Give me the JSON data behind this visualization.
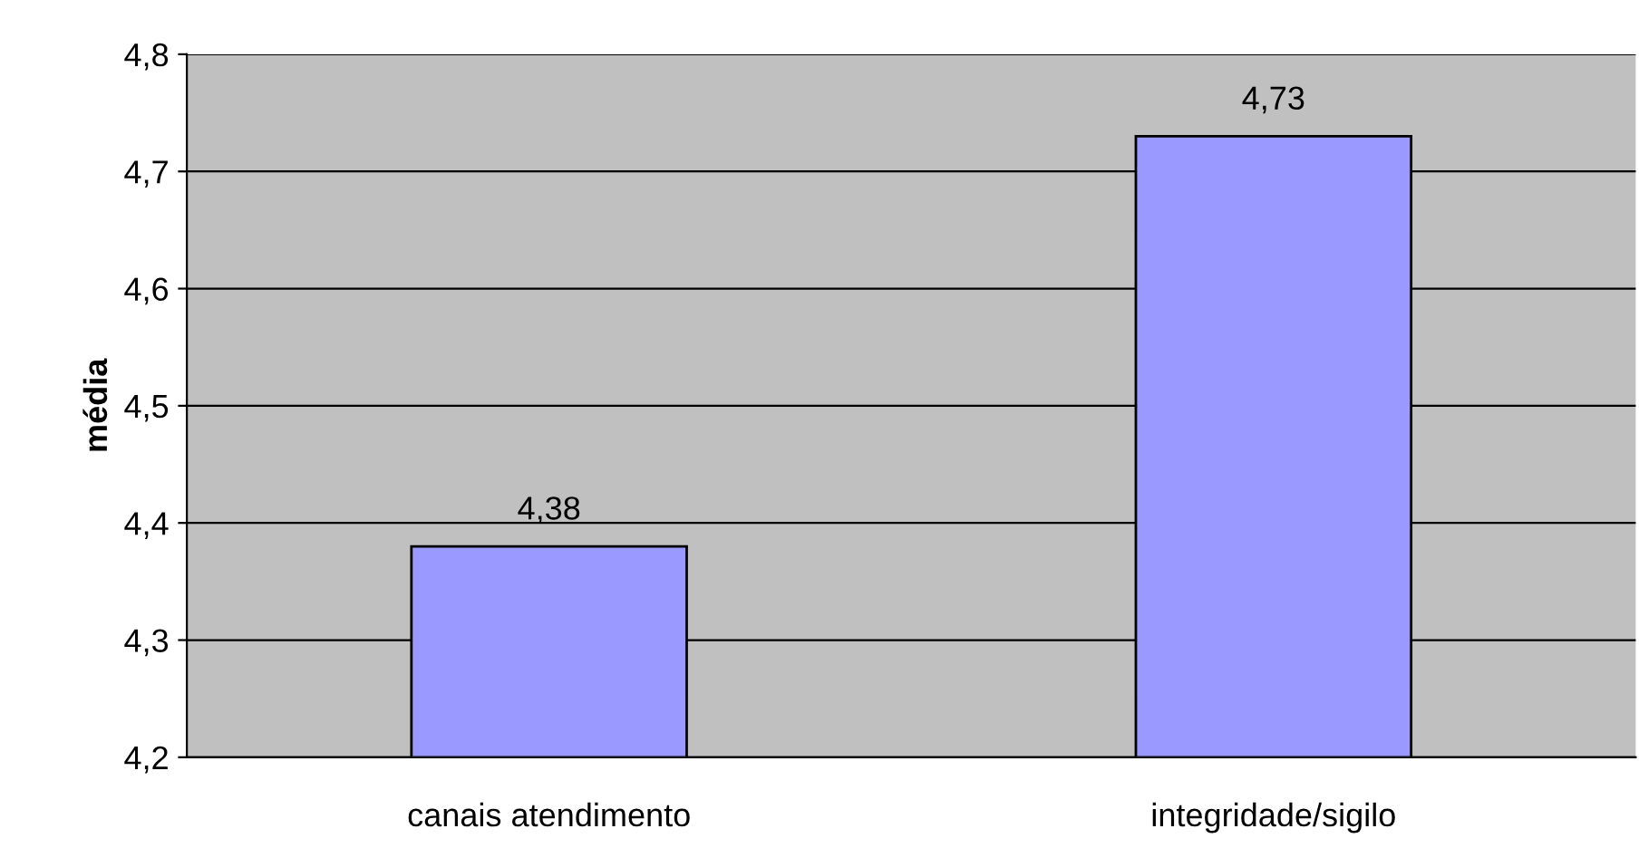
{
  "chart_data": {
    "type": "bar",
    "ylabel": "média",
    "categories": [
      "canais atendimento",
      "integridade/sigilo"
    ],
    "values": [
      4.38,
      4.73
    ],
    "value_labels": [
      "4,38",
      "4,73"
    ],
    "color": "#9999ff",
    "ylim": [
      4.2,
      4.8
    ],
    "yticks": [
      {
        "value": 4.2,
        "label": "4,2"
      },
      {
        "value": 4.3,
        "label": "4,3"
      },
      {
        "value": 4.4,
        "label": "4,4"
      },
      {
        "value": 4.5,
        "label": "4,5"
      },
      {
        "value": 4.6,
        "label": "4,6"
      },
      {
        "value": 4.7,
        "label": "4,7"
      },
      {
        "value": 4.8,
        "label": "4,8"
      }
    ],
    "grid": "y",
    "legend": false
  }
}
